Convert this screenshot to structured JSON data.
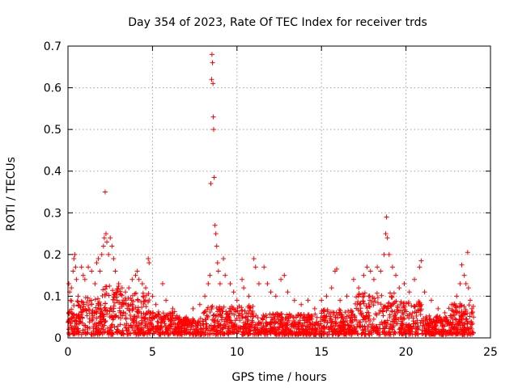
{
  "chart_data": {
    "type": "scatter",
    "title": "Day 354 of 2023, Rate Of TEC Index for receiver trds",
    "xlabel": "GPS time / hours",
    "ylabel": "ROTI / TECUs",
    "xlim": [
      0,
      25
    ],
    "ylim": [
      0,
      0.7
    ],
    "xticks": [
      "0",
      "5",
      "10",
      "15",
      "20",
      "25"
    ],
    "yticks": [
      "0",
      "0.1",
      "0.2",
      "0.3",
      "0.4",
      "0.5",
      "0.6",
      "0.7"
    ],
    "grid": true,
    "marker": "+",
    "color": "#ff0000",
    "series": [
      {
        "name": "ROTI",
        "points": [
          [
            0.05,
            0.13
          ],
          [
            0.1,
            0.11
          ],
          [
            0.15,
            0.09
          ],
          [
            0.2,
            0.12
          ],
          [
            0.3,
            0.16
          ],
          [
            0.35,
            0.19
          ],
          [
            0.4,
            0.2
          ],
          [
            0.45,
            0.17
          ],
          [
            0.5,
            0.14
          ],
          [
            0.6,
            0.1
          ],
          [
            0.8,
            0.17
          ],
          [
            0.9,
            0.15
          ],
          [
            1.0,
            0.14
          ],
          [
            1.2,
            0.17
          ],
          [
            1.4,
            0.16
          ],
          [
            1.6,
            0.13
          ],
          [
            1.7,
            0.18
          ],
          [
            1.8,
            0.19
          ],
          [
            1.9,
            0.16
          ],
          [
            2.0,
            0.2
          ],
          [
            2.1,
            0.22
          ],
          [
            2.15,
            0.24
          ],
          [
            2.2,
            0.35
          ],
          [
            2.25,
            0.25
          ],
          [
            2.3,
            0.23
          ],
          [
            2.4,
            0.2
          ],
          [
            2.5,
            0.24
          ],
          [
            2.6,
            0.22
          ],
          [
            2.7,
            0.19
          ],
          [
            2.8,
            0.16
          ],
          [
            3.0,
            0.13
          ],
          [
            3.2,
            0.12
          ],
          [
            3.4,
            0.11
          ],
          [
            3.6,
            0.12
          ],
          [
            3.8,
            0.14
          ],
          [
            4.0,
            0.15
          ],
          [
            4.1,
            0.16
          ],
          [
            4.2,
            0.14
          ],
          [
            4.4,
            0.13
          ],
          [
            4.6,
            0.12
          ],
          [
            4.75,
            0.19
          ],
          [
            4.8,
            0.18
          ],
          [
            5.0,
            0.1
          ],
          [
            5.2,
            0.08
          ],
          [
            5.6,
            0.13
          ],
          [
            5.8,
            0.09
          ],
          [
            6.2,
            0.07
          ],
          [
            6.6,
            0.05
          ],
          [
            7.0,
            0.05
          ],
          [
            7.4,
            0.07
          ],
          [
            7.8,
            0.08
          ],
          [
            8.1,
            0.1
          ],
          [
            8.3,
            0.13
          ],
          [
            8.4,
            0.15
          ],
          [
            8.45,
            0.37
          ],
          [
            8.5,
            0.62
          ],
          [
            8.52,
            0.68
          ],
          [
            8.55,
            0.66
          ],
          [
            8.58,
            0.61
          ],
          [
            8.6,
            0.53
          ],
          [
            8.62,
            0.5
          ],
          [
            8.65,
            0.385
          ],
          [
            8.7,
            0.27
          ],
          [
            8.75,
            0.25
          ],
          [
            8.8,
            0.22
          ],
          [
            8.85,
            0.18
          ],
          [
            8.9,
            0.16
          ],
          [
            9.0,
            0.13
          ],
          [
            9.2,
            0.19
          ],
          [
            9.3,
            0.15
          ],
          [
            9.6,
            0.13
          ],
          [
            9.8,
            0.11
          ],
          [
            10.0,
            0.09
          ],
          [
            10.3,
            0.14
          ],
          [
            10.4,
            0.12
          ],
          [
            10.7,
            0.1
          ],
          [
            11.0,
            0.19
          ],
          [
            11.1,
            0.17
          ],
          [
            11.3,
            0.13
          ],
          [
            11.6,
            0.17
          ],
          [
            11.8,
            0.13
          ],
          [
            12.0,
            0.11
          ],
          [
            12.3,
            0.1
          ],
          [
            12.6,
            0.14
          ],
          [
            12.8,
            0.15
          ],
          [
            13.0,
            0.11
          ],
          [
            13.4,
            0.09
          ],
          [
            13.8,
            0.08
          ],
          [
            14.2,
            0.09
          ],
          [
            14.6,
            0.07
          ],
          [
            15.0,
            0.09
          ],
          [
            15.3,
            0.1
          ],
          [
            15.6,
            0.12
          ],
          [
            15.8,
            0.16
          ],
          [
            15.9,
            0.165
          ],
          [
            16.1,
            0.09
          ],
          [
            16.5,
            0.1
          ],
          [
            16.9,
            0.14
          ],
          [
            17.2,
            0.12
          ],
          [
            17.5,
            0.15
          ],
          [
            17.7,
            0.17
          ],
          [
            17.9,
            0.16
          ],
          [
            18.1,
            0.14
          ],
          [
            18.3,
            0.17
          ],
          [
            18.5,
            0.16
          ],
          [
            18.7,
            0.2
          ],
          [
            18.8,
            0.25
          ],
          [
            18.85,
            0.29
          ],
          [
            18.9,
            0.24
          ],
          [
            19.0,
            0.2
          ],
          [
            19.2,
            0.17
          ],
          [
            19.4,
            0.15
          ],
          [
            19.6,
            0.12
          ],
          [
            19.9,
            0.13
          ],
          [
            20.2,
            0.11
          ],
          [
            20.5,
            0.14
          ],
          [
            20.8,
            0.17
          ],
          [
            20.9,
            0.185
          ],
          [
            21.1,
            0.11
          ],
          [
            21.5,
            0.09
          ],
          [
            21.9,
            0.07
          ],
          [
            22.3,
            0.06
          ],
          [
            22.7,
            0.08
          ],
          [
            23.0,
            0.1
          ],
          [
            23.2,
            0.13
          ],
          [
            23.3,
            0.175
          ],
          [
            23.45,
            0.15
          ],
          [
            23.55,
            0.13
          ],
          [
            23.65,
            0.205
          ],
          [
            23.7,
            0.12
          ],
          [
            23.8,
            0.09
          ],
          [
            23.9,
            0.07
          ],
          [
            24.0,
            0.05
          ]
        ]
      }
    ]
  }
}
